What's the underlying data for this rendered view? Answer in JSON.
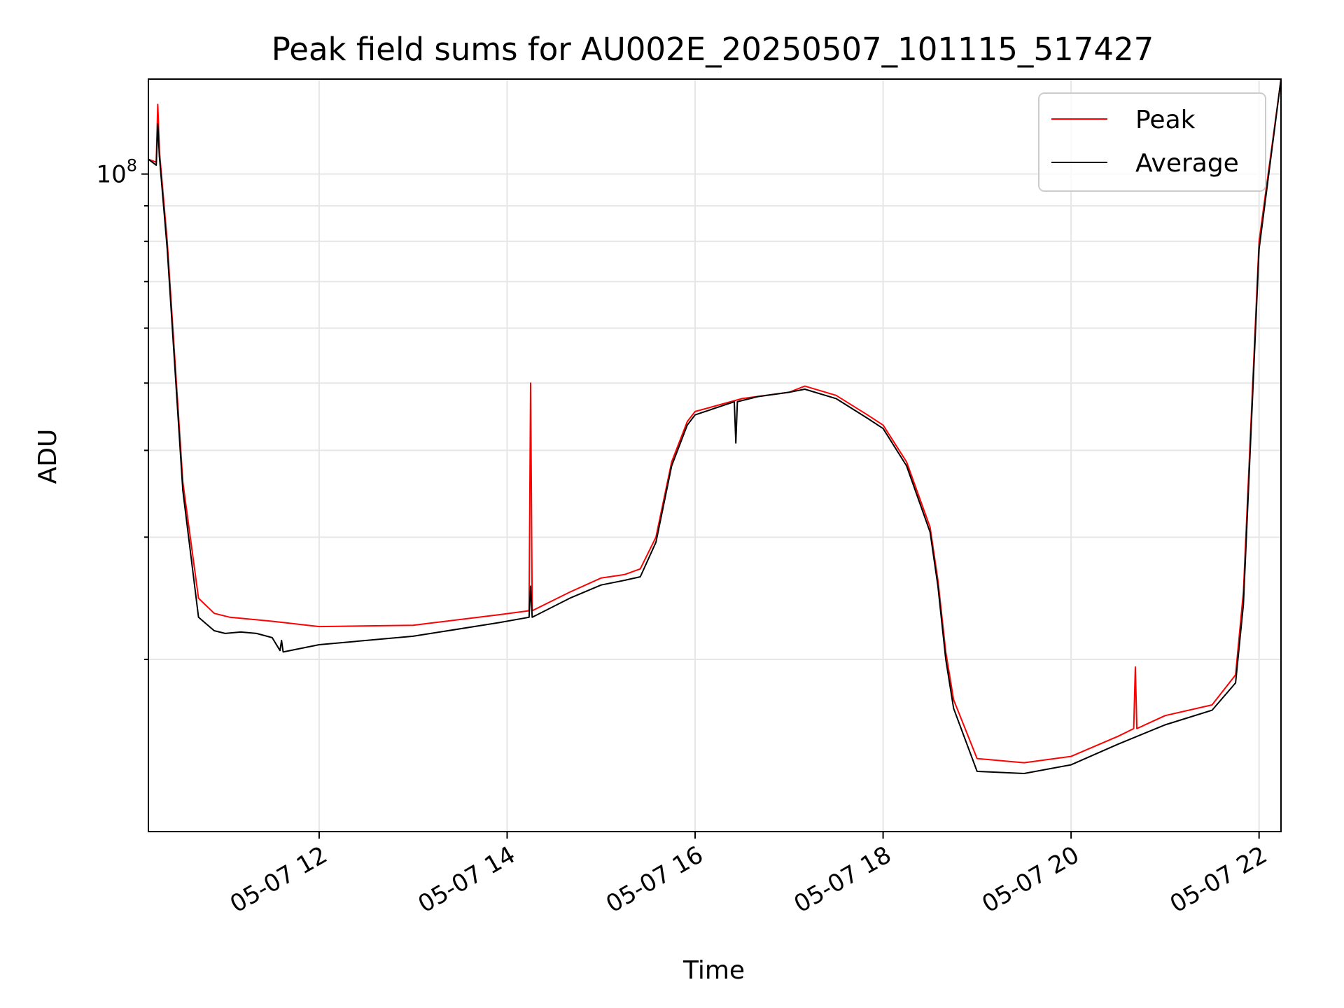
{
  "chart_data": {
    "type": "line",
    "title": "Peak field sums for AU002E_20250507_101115_517427",
    "xlabel": "Time",
    "ylabel": "ADU",
    "y_scale": "log",
    "ylim": [
      11300000,
      137000000
    ],
    "xlim": [
      "2025-05-07 10:11",
      "2025-05-07 22:14"
    ],
    "x_ticks": [
      {
        "t": "2025-05-07 12:00",
        "label": "05-07 12"
      },
      {
        "t": "2025-05-07 14:00",
        "label": "05-07 14"
      },
      {
        "t": "2025-05-07 16:00",
        "label": "05-07 16"
      },
      {
        "t": "2025-05-07 18:00",
        "label": "05-07 18"
      },
      {
        "t": "2025-05-07 20:00",
        "label": "05-07 20"
      },
      {
        "t": "2025-05-07 22:00",
        "label": "05-07 22"
      }
    ],
    "y_major_ticks": [
      {
        "value": 100000000,
        "base": "10",
        "exp": "8"
      }
    ],
    "y_minor_ticks": [
      20000000,
      30000000,
      40000000,
      50000000,
      60000000,
      70000000,
      80000000,
      90000000
    ],
    "grid": true,
    "legend": {
      "position": "top-right"
    },
    "series": [
      {
        "name": "Peak",
        "color": "#ff0000",
        "x": [
          "2025-05-07 10:11",
          "2025-05-07 10:16",
          "2025-05-07 10:17",
          "2025-05-07 10:18",
          "2025-05-07 10:23",
          "2025-05-07 10:33",
          "2025-05-07 10:43",
          "2025-05-07 10:53",
          "2025-05-07 11:03",
          "2025-05-07 11:30",
          "2025-05-07 12:00",
          "2025-05-07 13:00",
          "2025-05-07 13:55",
          "2025-05-07 14:14",
          "2025-05-07 14:15",
          "2025-05-07 14:16",
          "2025-05-07 14:40",
          "2025-05-07 15:00",
          "2025-05-07 15:15",
          "2025-05-07 15:25",
          "2025-05-07 15:35",
          "2025-05-07 15:45",
          "2025-05-07 15:55",
          "2025-05-07 16:00",
          "2025-05-07 16:30",
          "2025-05-07 17:00",
          "2025-05-07 17:10",
          "2025-05-07 17:30",
          "2025-05-07 17:50",
          "2025-05-07 18:00",
          "2025-05-07 18:15",
          "2025-05-07 18:30",
          "2025-05-07 18:35",
          "2025-05-07 18:40",
          "2025-05-07 18:45",
          "2025-05-07 19:00",
          "2025-05-07 19:30",
          "2025-05-07 20:00",
          "2025-05-07 20:30",
          "2025-05-07 20:40",
          "2025-05-07 20:41",
          "2025-05-07 20:42",
          "2025-05-07 21:00",
          "2025-05-07 21:30",
          "2025-05-07 21:45",
          "2025-05-07 21:50",
          "2025-05-07 22:00",
          "2025-05-07 22:14"
        ],
        "values": [
          105000000,
          104000000,
          126000000,
          108000000,
          80000000,
          36000000,
          24500000,
          23300000,
          23000000,
          22700000,
          22300000,
          22400000,
          23200000,
          23500000,
          50000000,
          23500000,
          25000000,
          26200000,
          26500000,
          27000000,
          30000000,
          38500000,
          44000000,
          45500000,
          47500000,
          48500000,
          49500000,
          48000000,
          45000000,
          43500000,
          38500000,
          31000000,
          26000000,
          20500000,
          17500000,
          14400000,
          14200000,
          14500000,
          15500000,
          15900000,
          19500000,
          15900000,
          16600000,
          17200000,
          19000000,
          25000000,
          80000000,
          137000000
        ]
      },
      {
        "name": "Average",
        "color": "#000000",
        "x": [
          "2025-05-07 10:11",
          "2025-05-07 10:16",
          "2025-05-07 10:17",
          "2025-05-07 10:18",
          "2025-05-07 10:23",
          "2025-05-07 10:33",
          "2025-05-07 10:43",
          "2025-05-07 10:53",
          "2025-05-07 11:00",
          "2025-05-07 11:10",
          "2025-05-07 11:20",
          "2025-05-07 11:30",
          "2025-05-07 11:35",
          "2025-05-07 11:36",
          "2025-05-07 11:37",
          "2025-05-07 12:00",
          "2025-05-07 13:00",
          "2025-05-07 13:55",
          "2025-05-07 14:14",
          "2025-05-07 14:15",
          "2025-05-07 14:16",
          "2025-05-07 14:40",
          "2025-05-07 15:00",
          "2025-05-07 15:15",
          "2025-05-07 15:25",
          "2025-05-07 15:35",
          "2025-05-07 15:45",
          "2025-05-07 15:55",
          "2025-05-07 16:00",
          "2025-05-07 16:25",
          "2025-05-07 16:26",
          "2025-05-07 16:27",
          "2025-05-07 16:40",
          "2025-05-07 17:00",
          "2025-05-07 17:10",
          "2025-05-07 17:30",
          "2025-05-07 17:50",
          "2025-05-07 18:00",
          "2025-05-07 18:15",
          "2025-05-07 18:30",
          "2025-05-07 18:35",
          "2025-05-07 18:40",
          "2025-05-07 18:45",
          "2025-05-07 19:00",
          "2025-05-07 19:30",
          "2025-05-07 20:00",
          "2025-05-07 20:30",
          "2025-05-07 21:00",
          "2025-05-07 21:30",
          "2025-05-07 21:45",
          "2025-05-07 21:50",
          "2025-05-07 22:00",
          "2025-05-07 22:14"
        ],
        "values": [
          105000000,
          103000000,
          118000000,
          106000000,
          78000000,
          35000000,
          23000000,
          22000000,
          21800000,
          21900000,
          21800000,
          21500000,
          20600000,
          21300000,
          20500000,
          21000000,
          21600000,
          22600000,
          23000000,
          25500000,
          23000000,
          24500000,
          25600000,
          26000000,
          26300000,
          29500000,
          38000000,
          43500000,
          45000000,
          47000000,
          41000000,
          47000000,
          47800000,
          48500000,
          49000000,
          47500000,
          44500000,
          43000000,
          38000000,
          30500000,
          25500000,
          20000000,
          17000000,
          13800000,
          13700000,
          14100000,
          15100000,
          16100000,
          16900000,
          18500000,
          24000000,
          78000000,
          137000000
        ]
      }
    ]
  }
}
